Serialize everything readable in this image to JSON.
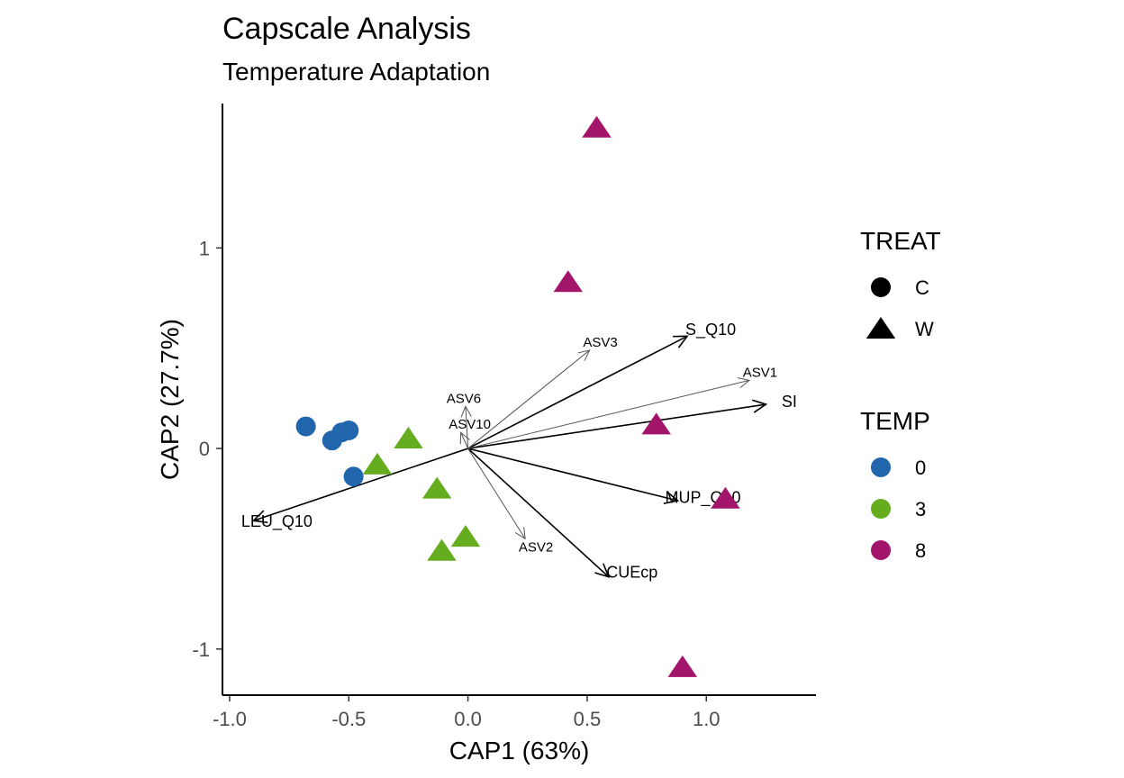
{
  "chart_data": {
    "type": "scatter",
    "title": "Capscale Analysis",
    "subtitle": "Temperature Adaptation",
    "xlabel": "CAP1 (63%)",
    "ylabel": "CAP2 (27.7%)",
    "xlim": [
      -1.03,
      1.46
    ],
    "ylim": [
      -1.23,
      1.72
    ],
    "xticks": [
      -1.0,
      -0.5,
      0.0,
      0.5,
      1.0
    ],
    "xtick_labels": [
      "-1.0",
      "-0.5",
      "0.0",
      "0.5",
      "1.0"
    ],
    "yticks": [
      -1,
      0,
      1
    ],
    "ytick_labels": [
      "-1",
      "0",
      "1"
    ],
    "grid": false,
    "colors": {
      "0": "#2166ac",
      "3": "#66ac1f",
      "8": "#a3156b"
    },
    "points": [
      {
        "x": -0.68,
        "y": 0.11,
        "treat": "C",
        "temp": "0"
      },
      {
        "x": -0.57,
        "y": 0.04,
        "treat": "C",
        "temp": "0"
      },
      {
        "x": -0.53,
        "y": 0.08,
        "treat": "C",
        "temp": "0"
      },
      {
        "x": -0.5,
        "y": 0.09,
        "treat": "C",
        "temp": "0"
      },
      {
        "x": -0.48,
        "y": -0.14,
        "treat": "C",
        "temp": "0"
      },
      {
        "x": -0.25,
        "y": 0.05,
        "treat": "W",
        "temp": "3"
      },
      {
        "x": -0.38,
        "y": -0.08,
        "treat": "W",
        "temp": "3"
      },
      {
        "x": -0.13,
        "y": -0.2,
        "treat": "W",
        "temp": "3"
      },
      {
        "x": -0.01,
        "y": -0.44,
        "treat": "W",
        "temp": "3"
      },
      {
        "x": -0.11,
        "y": -0.51,
        "treat": "W",
        "temp": "3"
      },
      {
        "x": 0.54,
        "y": 1.6,
        "treat": "W",
        "temp": "8"
      },
      {
        "x": 0.42,
        "y": 0.83,
        "treat": "W",
        "temp": "8"
      },
      {
        "x": 0.79,
        "y": 0.12,
        "treat": "W",
        "temp": "8"
      },
      {
        "x": 1.08,
        "y": -0.25,
        "treat": "W",
        "temp": "8"
      },
      {
        "x": 0.9,
        "y": -1.09,
        "treat": "W",
        "temp": "8"
      }
    ],
    "vectors": [
      {
        "label": "S_Q10",
        "x": 0.92,
        "y": 0.56,
        "kind": "env"
      },
      {
        "label": "SI",
        "x": 1.25,
        "y": 0.22,
        "kind": "env"
      },
      {
        "label": "MUP_Q10",
        "x": 0.88,
        "y": -0.26,
        "kind": "env"
      },
      {
        "label": "CUEcp",
        "x": 0.59,
        "y": -0.64,
        "kind": "env"
      },
      {
        "label": "LEU_Q10",
        "x": -0.9,
        "y": -0.36,
        "kind": "env"
      },
      {
        "label": "ASV3",
        "x": 0.51,
        "y": 0.49,
        "kind": "asv"
      },
      {
        "label": "ASV1",
        "x": 1.18,
        "y": 0.34,
        "kind": "asv"
      },
      {
        "label": "ASV6",
        "x": -0.01,
        "y": 0.21,
        "kind": "asv"
      },
      {
        "label": "ASV10",
        "x": -0.03,
        "y": 0.08,
        "kind": "asv"
      },
      {
        "label": "ASV2",
        "x": 0.24,
        "y": -0.45,
        "kind": "asv"
      }
    ],
    "legends": [
      {
        "title": "TREAT",
        "items": [
          {
            "label": "C",
            "shape": "circle"
          },
          {
            "label": "W",
            "shape": "triangle"
          }
        ]
      },
      {
        "title": "TEMP",
        "items": [
          {
            "label": "0",
            "color": "#2166ac"
          },
          {
            "label": "3",
            "color": "#66ac1f"
          },
          {
            "label": "8",
            "color": "#a3156b"
          }
        ]
      }
    ],
    "legend_position": "right"
  }
}
